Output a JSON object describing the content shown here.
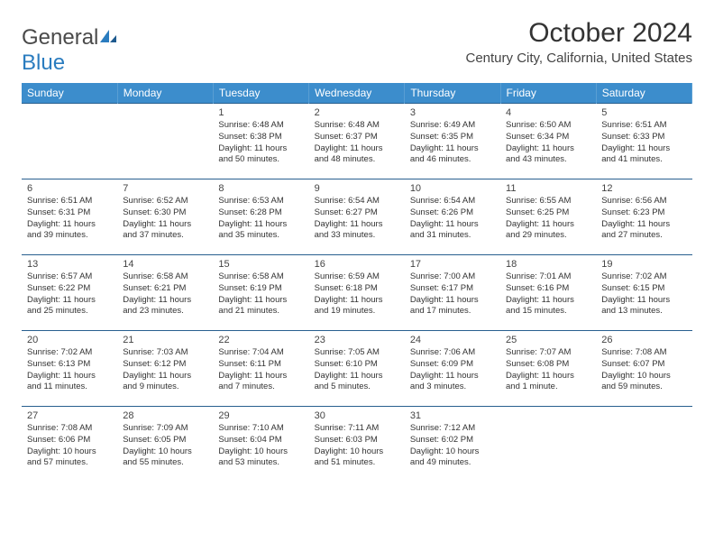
{
  "logo": {
    "text1": "General",
    "text2": "Blue"
  },
  "header": {
    "title": "October 2024",
    "location": "Century City, California, United States"
  },
  "colors": {
    "header_bg": "#3c8dcc",
    "border": "#285f8f",
    "text": "#333333"
  },
  "weekdays": [
    "Sunday",
    "Monday",
    "Tuesday",
    "Wednesday",
    "Thursday",
    "Friday",
    "Saturday"
  ],
  "weeks": [
    [
      null,
      null,
      {
        "n": "1",
        "sr": "Sunrise: 6:48 AM",
        "ss": "Sunset: 6:38 PM",
        "d1": "Daylight: 11 hours",
        "d2": "and 50 minutes."
      },
      {
        "n": "2",
        "sr": "Sunrise: 6:48 AM",
        "ss": "Sunset: 6:37 PM",
        "d1": "Daylight: 11 hours",
        "d2": "and 48 minutes."
      },
      {
        "n": "3",
        "sr": "Sunrise: 6:49 AM",
        "ss": "Sunset: 6:35 PM",
        "d1": "Daylight: 11 hours",
        "d2": "and 46 minutes."
      },
      {
        "n": "4",
        "sr": "Sunrise: 6:50 AM",
        "ss": "Sunset: 6:34 PM",
        "d1": "Daylight: 11 hours",
        "d2": "and 43 minutes."
      },
      {
        "n": "5",
        "sr": "Sunrise: 6:51 AM",
        "ss": "Sunset: 6:33 PM",
        "d1": "Daylight: 11 hours",
        "d2": "and 41 minutes."
      }
    ],
    [
      {
        "n": "6",
        "sr": "Sunrise: 6:51 AM",
        "ss": "Sunset: 6:31 PM",
        "d1": "Daylight: 11 hours",
        "d2": "and 39 minutes."
      },
      {
        "n": "7",
        "sr": "Sunrise: 6:52 AM",
        "ss": "Sunset: 6:30 PM",
        "d1": "Daylight: 11 hours",
        "d2": "and 37 minutes."
      },
      {
        "n": "8",
        "sr": "Sunrise: 6:53 AM",
        "ss": "Sunset: 6:28 PM",
        "d1": "Daylight: 11 hours",
        "d2": "and 35 minutes."
      },
      {
        "n": "9",
        "sr": "Sunrise: 6:54 AM",
        "ss": "Sunset: 6:27 PM",
        "d1": "Daylight: 11 hours",
        "d2": "and 33 minutes."
      },
      {
        "n": "10",
        "sr": "Sunrise: 6:54 AM",
        "ss": "Sunset: 6:26 PM",
        "d1": "Daylight: 11 hours",
        "d2": "and 31 minutes."
      },
      {
        "n": "11",
        "sr": "Sunrise: 6:55 AM",
        "ss": "Sunset: 6:25 PM",
        "d1": "Daylight: 11 hours",
        "d2": "and 29 minutes."
      },
      {
        "n": "12",
        "sr": "Sunrise: 6:56 AM",
        "ss": "Sunset: 6:23 PM",
        "d1": "Daylight: 11 hours",
        "d2": "and 27 minutes."
      }
    ],
    [
      {
        "n": "13",
        "sr": "Sunrise: 6:57 AM",
        "ss": "Sunset: 6:22 PM",
        "d1": "Daylight: 11 hours",
        "d2": "and 25 minutes."
      },
      {
        "n": "14",
        "sr": "Sunrise: 6:58 AM",
        "ss": "Sunset: 6:21 PM",
        "d1": "Daylight: 11 hours",
        "d2": "and 23 minutes."
      },
      {
        "n": "15",
        "sr": "Sunrise: 6:58 AM",
        "ss": "Sunset: 6:19 PM",
        "d1": "Daylight: 11 hours",
        "d2": "and 21 minutes."
      },
      {
        "n": "16",
        "sr": "Sunrise: 6:59 AM",
        "ss": "Sunset: 6:18 PM",
        "d1": "Daylight: 11 hours",
        "d2": "and 19 minutes."
      },
      {
        "n": "17",
        "sr": "Sunrise: 7:00 AM",
        "ss": "Sunset: 6:17 PM",
        "d1": "Daylight: 11 hours",
        "d2": "and 17 minutes."
      },
      {
        "n": "18",
        "sr": "Sunrise: 7:01 AM",
        "ss": "Sunset: 6:16 PM",
        "d1": "Daylight: 11 hours",
        "d2": "and 15 minutes."
      },
      {
        "n": "19",
        "sr": "Sunrise: 7:02 AM",
        "ss": "Sunset: 6:15 PM",
        "d1": "Daylight: 11 hours",
        "d2": "and 13 minutes."
      }
    ],
    [
      {
        "n": "20",
        "sr": "Sunrise: 7:02 AM",
        "ss": "Sunset: 6:13 PM",
        "d1": "Daylight: 11 hours",
        "d2": "and 11 minutes."
      },
      {
        "n": "21",
        "sr": "Sunrise: 7:03 AM",
        "ss": "Sunset: 6:12 PM",
        "d1": "Daylight: 11 hours",
        "d2": "and 9 minutes."
      },
      {
        "n": "22",
        "sr": "Sunrise: 7:04 AM",
        "ss": "Sunset: 6:11 PM",
        "d1": "Daylight: 11 hours",
        "d2": "and 7 minutes."
      },
      {
        "n": "23",
        "sr": "Sunrise: 7:05 AM",
        "ss": "Sunset: 6:10 PM",
        "d1": "Daylight: 11 hours",
        "d2": "and 5 minutes."
      },
      {
        "n": "24",
        "sr": "Sunrise: 7:06 AM",
        "ss": "Sunset: 6:09 PM",
        "d1": "Daylight: 11 hours",
        "d2": "and 3 minutes."
      },
      {
        "n": "25",
        "sr": "Sunrise: 7:07 AM",
        "ss": "Sunset: 6:08 PM",
        "d1": "Daylight: 11 hours",
        "d2": "and 1 minute."
      },
      {
        "n": "26",
        "sr": "Sunrise: 7:08 AM",
        "ss": "Sunset: 6:07 PM",
        "d1": "Daylight: 10 hours",
        "d2": "and 59 minutes."
      }
    ],
    [
      {
        "n": "27",
        "sr": "Sunrise: 7:08 AM",
        "ss": "Sunset: 6:06 PM",
        "d1": "Daylight: 10 hours",
        "d2": "and 57 minutes."
      },
      {
        "n": "28",
        "sr": "Sunrise: 7:09 AM",
        "ss": "Sunset: 6:05 PM",
        "d1": "Daylight: 10 hours",
        "d2": "and 55 minutes."
      },
      {
        "n": "29",
        "sr": "Sunrise: 7:10 AM",
        "ss": "Sunset: 6:04 PM",
        "d1": "Daylight: 10 hours",
        "d2": "and 53 minutes."
      },
      {
        "n": "30",
        "sr": "Sunrise: 7:11 AM",
        "ss": "Sunset: 6:03 PM",
        "d1": "Daylight: 10 hours",
        "d2": "and 51 minutes."
      },
      {
        "n": "31",
        "sr": "Sunrise: 7:12 AM",
        "ss": "Sunset: 6:02 PM",
        "d1": "Daylight: 10 hours",
        "d2": "and 49 minutes."
      },
      null,
      null
    ]
  ]
}
